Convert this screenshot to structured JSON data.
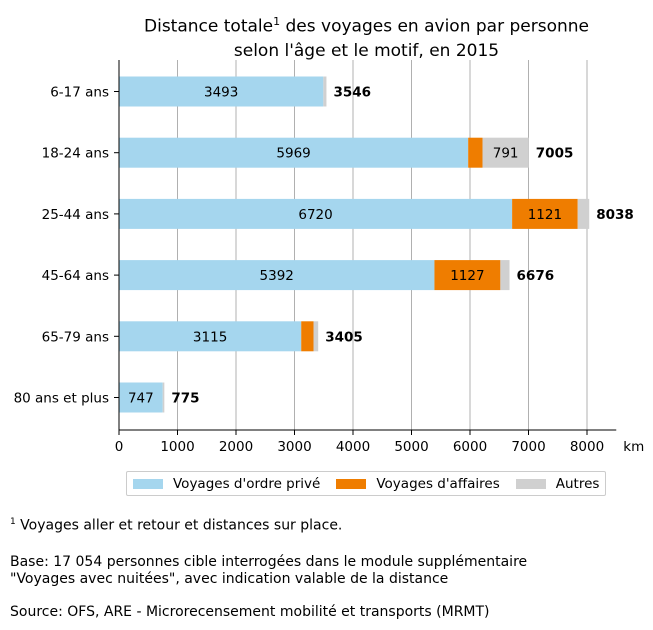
{
  "chart_data": {
    "type": "bar",
    "orientation": "horizontal",
    "stacked": true,
    "title_line1": "Distance totale",
    "title_sup": "1",
    "title_line1_rest": " des voyages en avion par personne",
    "title_line2": "selon l'âge et le motif, en 2015",
    "categories": [
      "6-17 ans",
      "18-24 ans",
      "25-44 ans",
      "45-64 ans",
      "65-79 ans",
      "80 ans et plus"
    ],
    "series": [
      {
        "name": "Voyages d'ordre privé",
        "color": "#a5d6ee",
        "values": [
          3493,
          5969,
          6720,
          5392,
          3115,
          747
        ],
        "labels": [
          "3493",
          "5969",
          "6720",
          "5392",
          "3115",
          "747"
        ]
      },
      {
        "name": "Voyages d'affaires",
        "color": "#ef7d00",
        "values": [
          0,
          245,
          1121,
          1127,
          210,
          0
        ],
        "labels": [
          "",
          "",
          "1121",
          "1127",
          "",
          ""
        ]
      },
      {
        "name": "Autres",
        "color": "#d0d0d0",
        "values": [
          53,
          791,
          197,
          157,
          80,
          28
        ],
        "labels": [
          "",
          "791",
          "",
          "",
          "",
          ""
        ]
      }
    ],
    "totals": [
      "3546",
      "7005",
      "8038",
      "6676",
      "3405",
      "775"
    ],
    "xlim": [
      0,
      8500
    ],
    "xticks": [
      "0",
      "1000",
      "2000",
      "3000",
      "4000",
      "5000",
      "6000",
      "7000",
      "8000"
    ],
    "xunit": "km",
    "grid": "vertical",
    "legend_position": "bottom"
  },
  "notes": {
    "footnote_sup": "1",
    "footnote_text": " Voyages aller et retour et distances sur place.",
    "base_line1": "Base: 17 054 personnes cible interrogées dans le module supplémentaire",
    "base_line2": "\"Voyages avec nuitées\", avec indication valable de la distance",
    "source": "Source: OFS, ARE - Microrecensement mobilité et transports (MRMT)"
  }
}
